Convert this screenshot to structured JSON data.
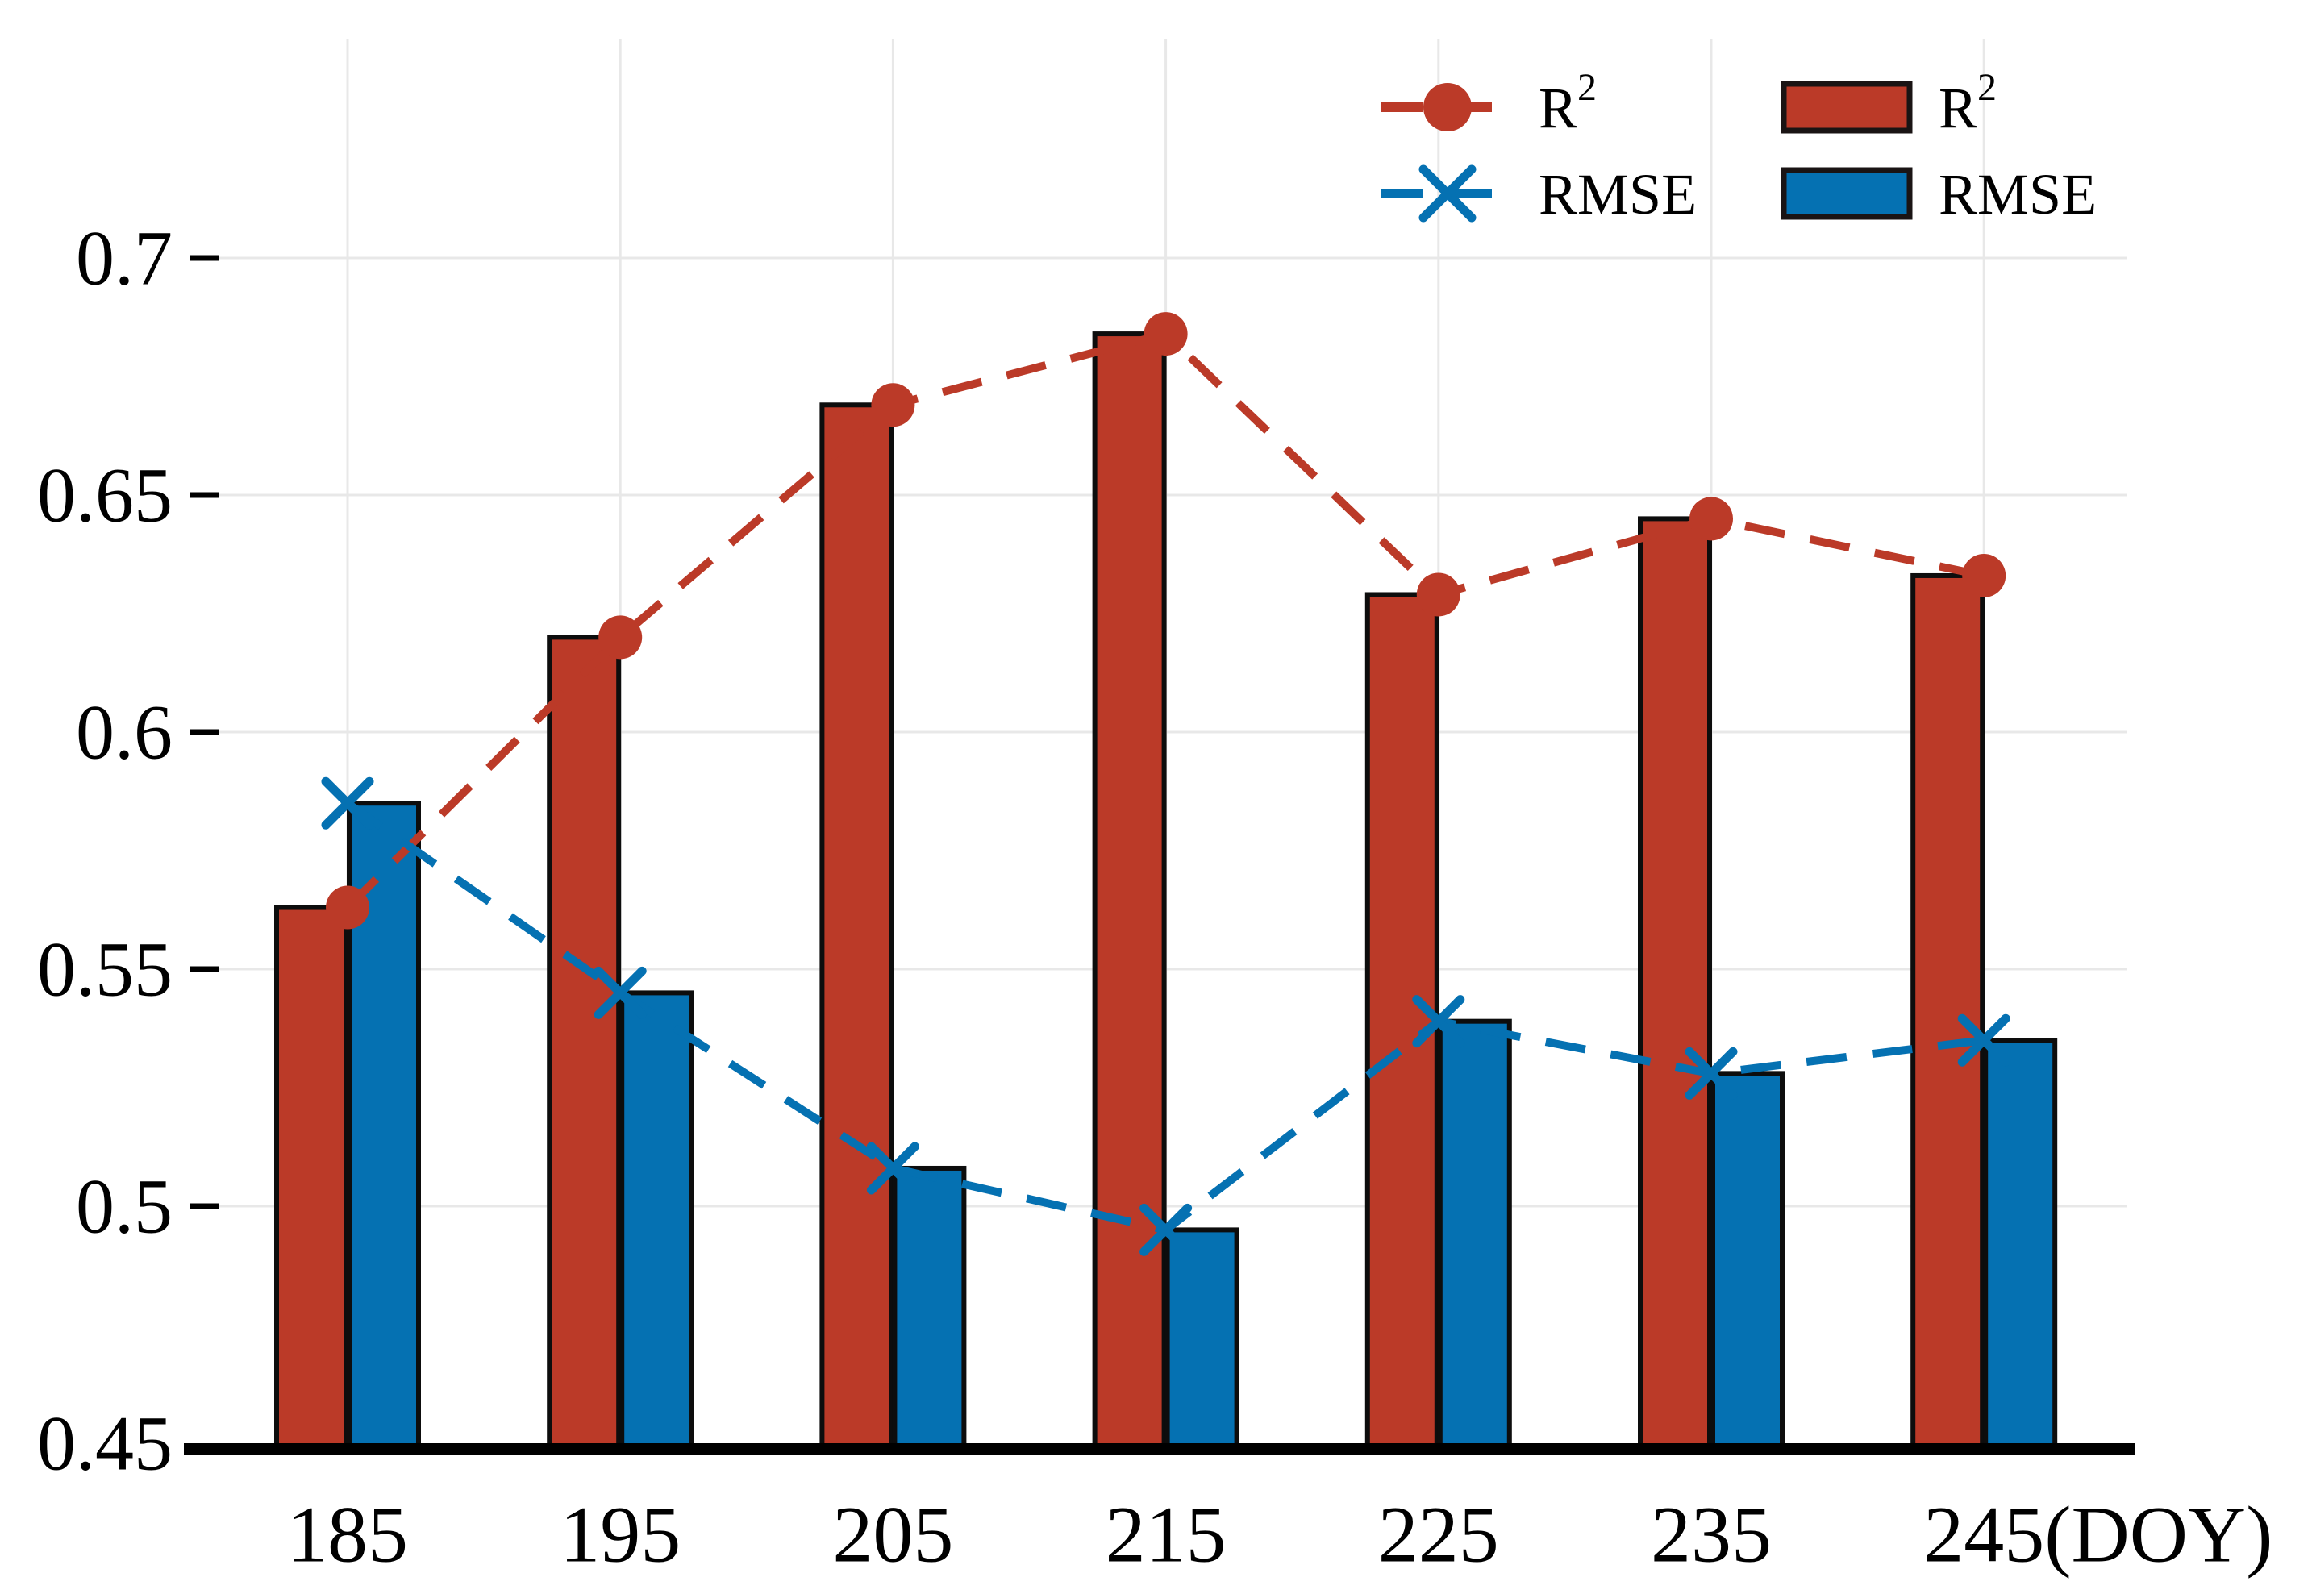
{
  "chart_data": {
    "type": "bar+line",
    "title": "",
    "xlabel_suffix": "(DOY)",
    "categories": [
      "185",
      "195",
      "205",
      "215",
      "225",
      "235",
      "245"
    ],
    "series": [
      {
        "name": "R2-bar",
        "kind": "bar",
        "color": "#bb3a28",
        "values": [
          0.563,
          0.62,
          0.669,
          0.684,
          0.629,
          0.645,
          0.633
        ]
      },
      {
        "name": "RMSE-bar",
        "kind": "bar",
        "color": "#0571b2",
        "values": [
          0.585,
          0.545,
          0.508,
          0.495,
          0.539,
          0.528,
          0.535
        ]
      },
      {
        "name": "R2-line",
        "kind": "line",
        "marker": "circle",
        "dashed": true,
        "color": "#bb3a28",
        "values": [
          0.563,
          0.62,
          0.669,
          0.684,
          0.629,
          0.645,
          0.633
        ]
      },
      {
        "name": "RMSE-line",
        "kind": "line",
        "marker": "x",
        "dashed": true,
        "color": "#0571b2",
        "values": [
          0.585,
          0.545,
          0.508,
          0.495,
          0.539,
          0.528,
          0.535
        ]
      }
    ],
    "yticks": [
      "0.45",
      "0.5",
      "0.55",
      "0.6",
      "0.65",
      "0.7"
    ],
    "ylim": [
      0.45,
      0.747
    ],
    "grid": true,
    "colors": {
      "red": "#bb3a28",
      "blue": "#0571b2",
      "grid": "#e8e8e8",
      "axis": "#000000",
      "bar_border": "#0d0d0d"
    },
    "legend": {
      "position": "top-right",
      "line_entries": [
        {
          "label_base": "R",
          "label_sup": "2",
          "color": "#bb3a28",
          "marker": "circle"
        },
        {
          "label_base": "RMSE",
          "label_sup": "",
          "color": "#0571b2",
          "marker": "x"
        }
      ],
      "swatch_entries": [
        {
          "label_base": "R",
          "label_sup": "2",
          "color": "#bb3a28"
        },
        {
          "label_base": "RMSE",
          "label_sup": "",
          "color": "#0571b2"
        }
      ]
    }
  }
}
